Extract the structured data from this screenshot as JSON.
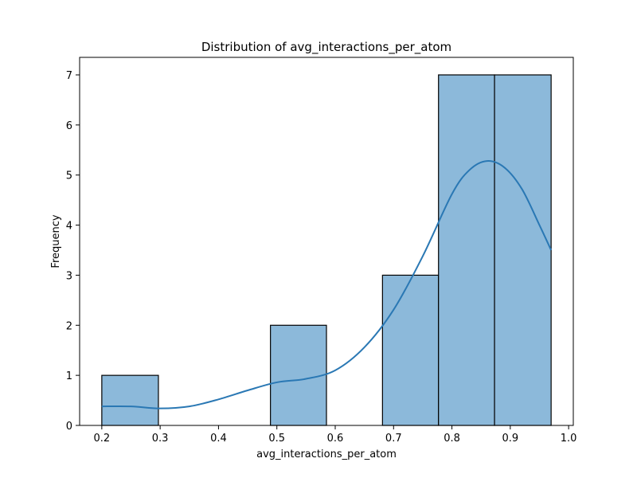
{
  "chart_data": {
    "type": "histogram",
    "title": "Distribution of avg_interactions_per_atom",
    "xlabel": "avg_interactions_per_atom",
    "ylabel": "Frequency",
    "xlim": [
      0.162,
      1.008
    ],
    "ylim": [
      0,
      7.35
    ],
    "xticks": [
      {
        "value": 0.2,
        "label": "0.2"
      },
      {
        "value": 0.3,
        "label": "0.3"
      },
      {
        "value": 0.4,
        "label": "0.4"
      },
      {
        "value": 0.5,
        "label": "0.5"
      },
      {
        "value": 0.6,
        "label": "0.6"
      },
      {
        "value": 0.7,
        "label": "0.7"
      },
      {
        "value": 0.8,
        "label": "0.8"
      },
      {
        "value": 0.9,
        "label": "0.9"
      },
      {
        "value": 1.0,
        "label": "1.0"
      }
    ],
    "yticks": [
      {
        "value": 0,
        "label": "0"
      },
      {
        "value": 1,
        "label": "1"
      },
      {
        "value": 2,
        "label": "2"
      },
      {
        "value": 3,
        "label": "3"
      },
      {
        "value": 4,
        "label": "4"
      },
      {
        "value": 5,
        "label": "5"
      },
      {
        "value": 6,
        "label": "6"
      },
      {
        "value": 7,
        "label": "7"
      }
    ],
    "bins": [
      {
        "x0": 0.2,
        "x1": 0.297,
        "count": 1
      },
      {
        "x0": 0.297,
        "x1": 0.393,
        "count": 0
      },
      {
        "x0": 0.393,
        "x1": 0.489,
        "count": 0
      },
      {
        "x0": 0.489,
        "x1": 0.585,
        "count": 2
      },
      {
        "x0": 0.585,
        "x1": 0.681,
        "count": 0
      },
      {
        "x0": 0.681,
        "x1": 0.777,
        "count": 3
      },
      {
        "x0": 0.777,
        "x1": 0.873,
        "count": 7
      },
      {
        "x0": 0.873,
        "x1": 0.97,
        "count": 7
      }
    ],
    "kde": {
      "x": [
        0.2,
        0.25,
        0.3,
        0.35,
        0.4,
        0.45,
        0.5,
        0.55,
        0.6,
        0.65,
        0.7,
        0.75,
        0.8,
        0.83,
        0.86,
        0.89,
        0.92,
        0.95,
        0.97
      ],
      "y": [
        0.38,
        0.38,
        0.34,
        0.38,
        0.52,
        0.7,
        0.86,
        0.93,
        1.1,
        1.56,
        2.31,
        3.38,
        4.62,
        5.1,
        5.28,
        5.15,
        4.72,
        4.0,
        3.5
      ]
    },
    "colors": {
      "bar_fill": "#8cb9da",
      "bar_edge": "#000000",
      "kde_line": "#2a78b4",
      "axis": "#000000"
    },
    "grid": false,
    "legend": "none"
  }
}
